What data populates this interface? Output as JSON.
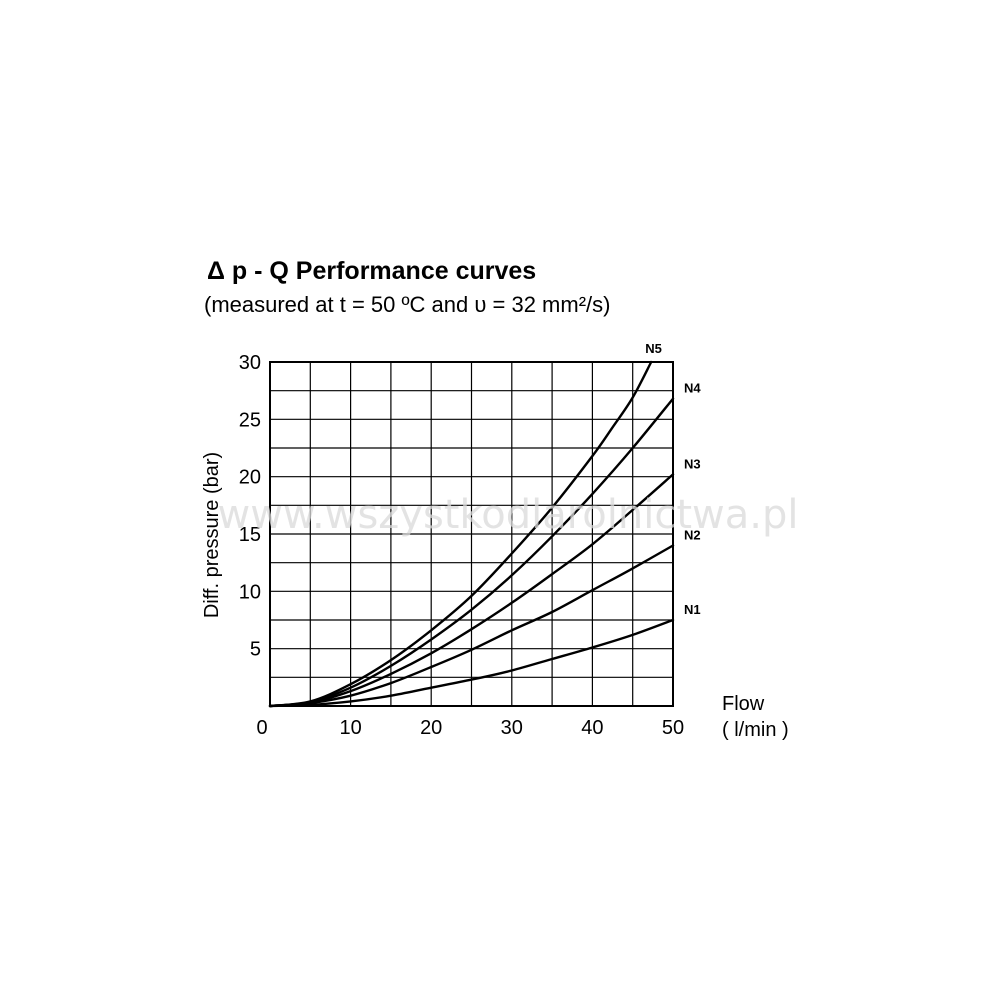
{
  "chart_data": {
    "type": "line",
    "title": "Δ p - Q Performance curves",
    "subtitle": "(measured at t = 50 ºC and υ = 32 mm²/s)",
    "xlabel": "Flow",
    "xunit": "( l/min )",
    "ylabel": "Diff. pressure (bar)",
    "xlim": [
      0,
      50
    ],
    "ylim": [
      0,
      30
    ],
    "xticks": [
      "0",
      "10",
      "20",
      "30",
      "40",
      "50"
    ],
    "yticks": [
      "5",
      "10",
      "15",
      "20",
      "25",
      "30"
    ],
    "grid": true,
    "x_minor_step": 5,
    "y_minor_step": 2.5,
    "line_color": "#000000",
    "series": [
      {
        "name": "N1",
        "x": [
          0,
          5,
          10,
          15,
          20,
          25,
          30,
          35,
          40,
          45,
          50
        ],
        "y": [
          0,
          0.1,
          0.4,
          0.9,
          1.6,
          2.3,
          3.1,
          4.1,
          5.1,
          6.2,
          7.5
        ]
      },
      {
        "name": "N2",
        "x": [
          0,
          5,
          10,
          15,
          20,
          25,
          30,
          35,
          40,
          45,
          50
        ],
        "y": [
          0,
          0.25,
          0.9,
          2.0,
          3.4,
          4.9,
          6.6,
          8.2,
          10.1,
          12.0,
          14.0
        ]
      },
      {
        "name": "N3",
        "x": [
          0,
          5,
          10,
          15,
          20,
          25,
          30,
          35,
          40,
          45,
          50
        ],
        "y": [
          0,
          0.3,
          1.3,
          2.8,
          4.6,
          6.7,
          9.0,
          11.5,
          14.1,
          17.1,
          20.2
        ]
      },
      {
        "name": "N4",
        "x": [
          0,
          5,
          10,
          15,
          20,
          25,
          30,
          35,
          40,
          45,
          50
        ],
        "y": [
          0,
          0.35,
          1.6,
          3.5,
          5.8,
          8.4,
          11.4,
          14.8,
          18.5,
          22.5,
          26.8
        ]
      },
      {
        "name": "N5",
        "x": [
          0,
          5,
          10,
          15,
          20,
          25,
          30,
          35,
          40,
          42.5,
          45,
          47.3
        ],
        "y": [
          0,
          0.4,
          1.9,
          4.0,
          6.6,
          9.6,
          13.3,
          17.3,
          21.8,
          24.3,
          26.9,
          30.0
        ]
      }
    ]
  },
  "watermark": "www.wszystkodlarolnictwa.pl"
}
